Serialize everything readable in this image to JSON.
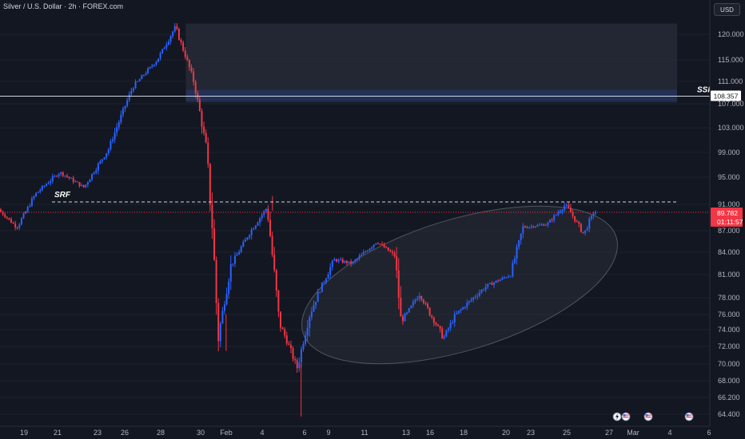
{
  "header": {
    "title": "Silver / U.S. Dollar · 2h · FOREX.com",
    "currency": "USD"
  },
  "colors": {
    "background": "#131722",
    "up": "#2962ff",
    "down": "#f23645",
    "grid": "#1e222d",
    "zone": "#2a2e39",
    "price_tag": "#f23645",
    "ssr_tag": "#ffffff"
  },
  "chart_data": {
    "type": "candlestick",
    "symbol": "Silver / U.S. Dollar",
    "interval": "2h",
    "source": "FOREX.com",
    "ylim": [
      63.5,
      123
    ],
    "y_ticks": [
      "120.000",
      "115.000",
      "111.000",
      "107.000",
      "103.000",
      "99.000",
      "95.000",
      "91.000",
      "87.000",
      "84.000",
      "81.000",
      "78.000",
      "76.000",
      "74.000",
      "72.000",
      "70.000",
      "68.000",
      "66.200",
      "64.400"
    ],
    "x_ticks": [
      "19",
      "21",
      "23",
      "26",
      "28",
      "30",
      "Feb",
      "4",
      "6",
      "9",
      "11",
      "13",
      "16",
      "18",
      "20",
      "23",
      "25",
      "27",
      "Mar",
      "4",
      "6"
    ],
    "price_path": [
      {
        "day": 0,
        "price": 90.2
      },
      {
        "day": 1.5,
        "price": 87.5
      },
      {
        "day": 3,
        "price": 92.5
      },
      {
        "day": 5,
        "price": 95.8
      },
      {
        "day": 7,
        "price": 93.5
      },
      {
        "day": 9,
        "price": 99.5
      },
      {
        "day": 11,
        "price": 110
      },
      {
        "day": 13,
        "price": 115
      },
      {
        "day": 14.5,
        "price": 121.5
      },
      {
        "day": 16,
        "price": 111
      },
      {
        "day": 17,
        "price": 100
      },
      {
        "day": 17.5,
        "price": 88
      },
      {
        "day": 18,
        "price": 73
      },
      {
        "day": 19,
        "price": 82
      },
      {
        "day": 20.5,
        "price": 86.5
      },
      {
        "day": 22,
        "price": 90.5
      },
      {
        "day": 23,
        "price": 75
      },
      {
        "day": 24.5,
        "price": 69.5
      },
      {
        "day": 25.5,
        "price": 76
      },
      {
        "day": 27.5,
        "price": 83
      },
      {
        "day": 29,
        "price": 82.5
      },
      {
        "day": 31,
        "price": 85.5
      },
      {
        "day": 32.5,
        "price": 83.5
      },
      {
        "day": 33,
        "price": 75
      },
      {
        "day": 34.5,
        "price": 78.5
      },
      {
        "day": 36.5,
        "price": 73
      },
      {
        "day": 37.5,
        "price": 76
      },
      {
        "day": 40,
        "price": 79.5
      },
      {
        "day": 42,
        "price": 81
      },
      {
        "day": 43,
        "price": 87.5
      },
      {
        "day": 45,
        "price": 88
      },
      {
        "day": 46.5,
        "price": 91
      },
      {
        "day": 48,
        "price": 86.5
      },
      {
        "day": 48.8,
        "price": 89.8
      }
    ],
    "levels": [
      {
        "label": "SSR",
        "price": 108.357,
        "price_label": "108.357",
        "style": "solid"
      },
      {
        "label": "SRF",
        "price": 91.0,
        "style": "dashed"
      },
      {
        "label": "",
        "price": 89.782,
        "style": "dotted",
        "price_label": "89.782",
        "countdown": "01:11:57"
      }
    ],
    "zones": [
      {
        "type": "supply",
        "from_day": 14,
        "to_day": 55,
        "top": 121.8,
        "bottom": 107.5
      },
      {
        "type": "accumulation-ellipse",
        "from_day": 24,
        "to_day": 49,
        "low": 69.5,
        "high": 90.5
      }
    ],
    "annotations": [
      "SSR",
      "SRF"
    ]
  }
}
